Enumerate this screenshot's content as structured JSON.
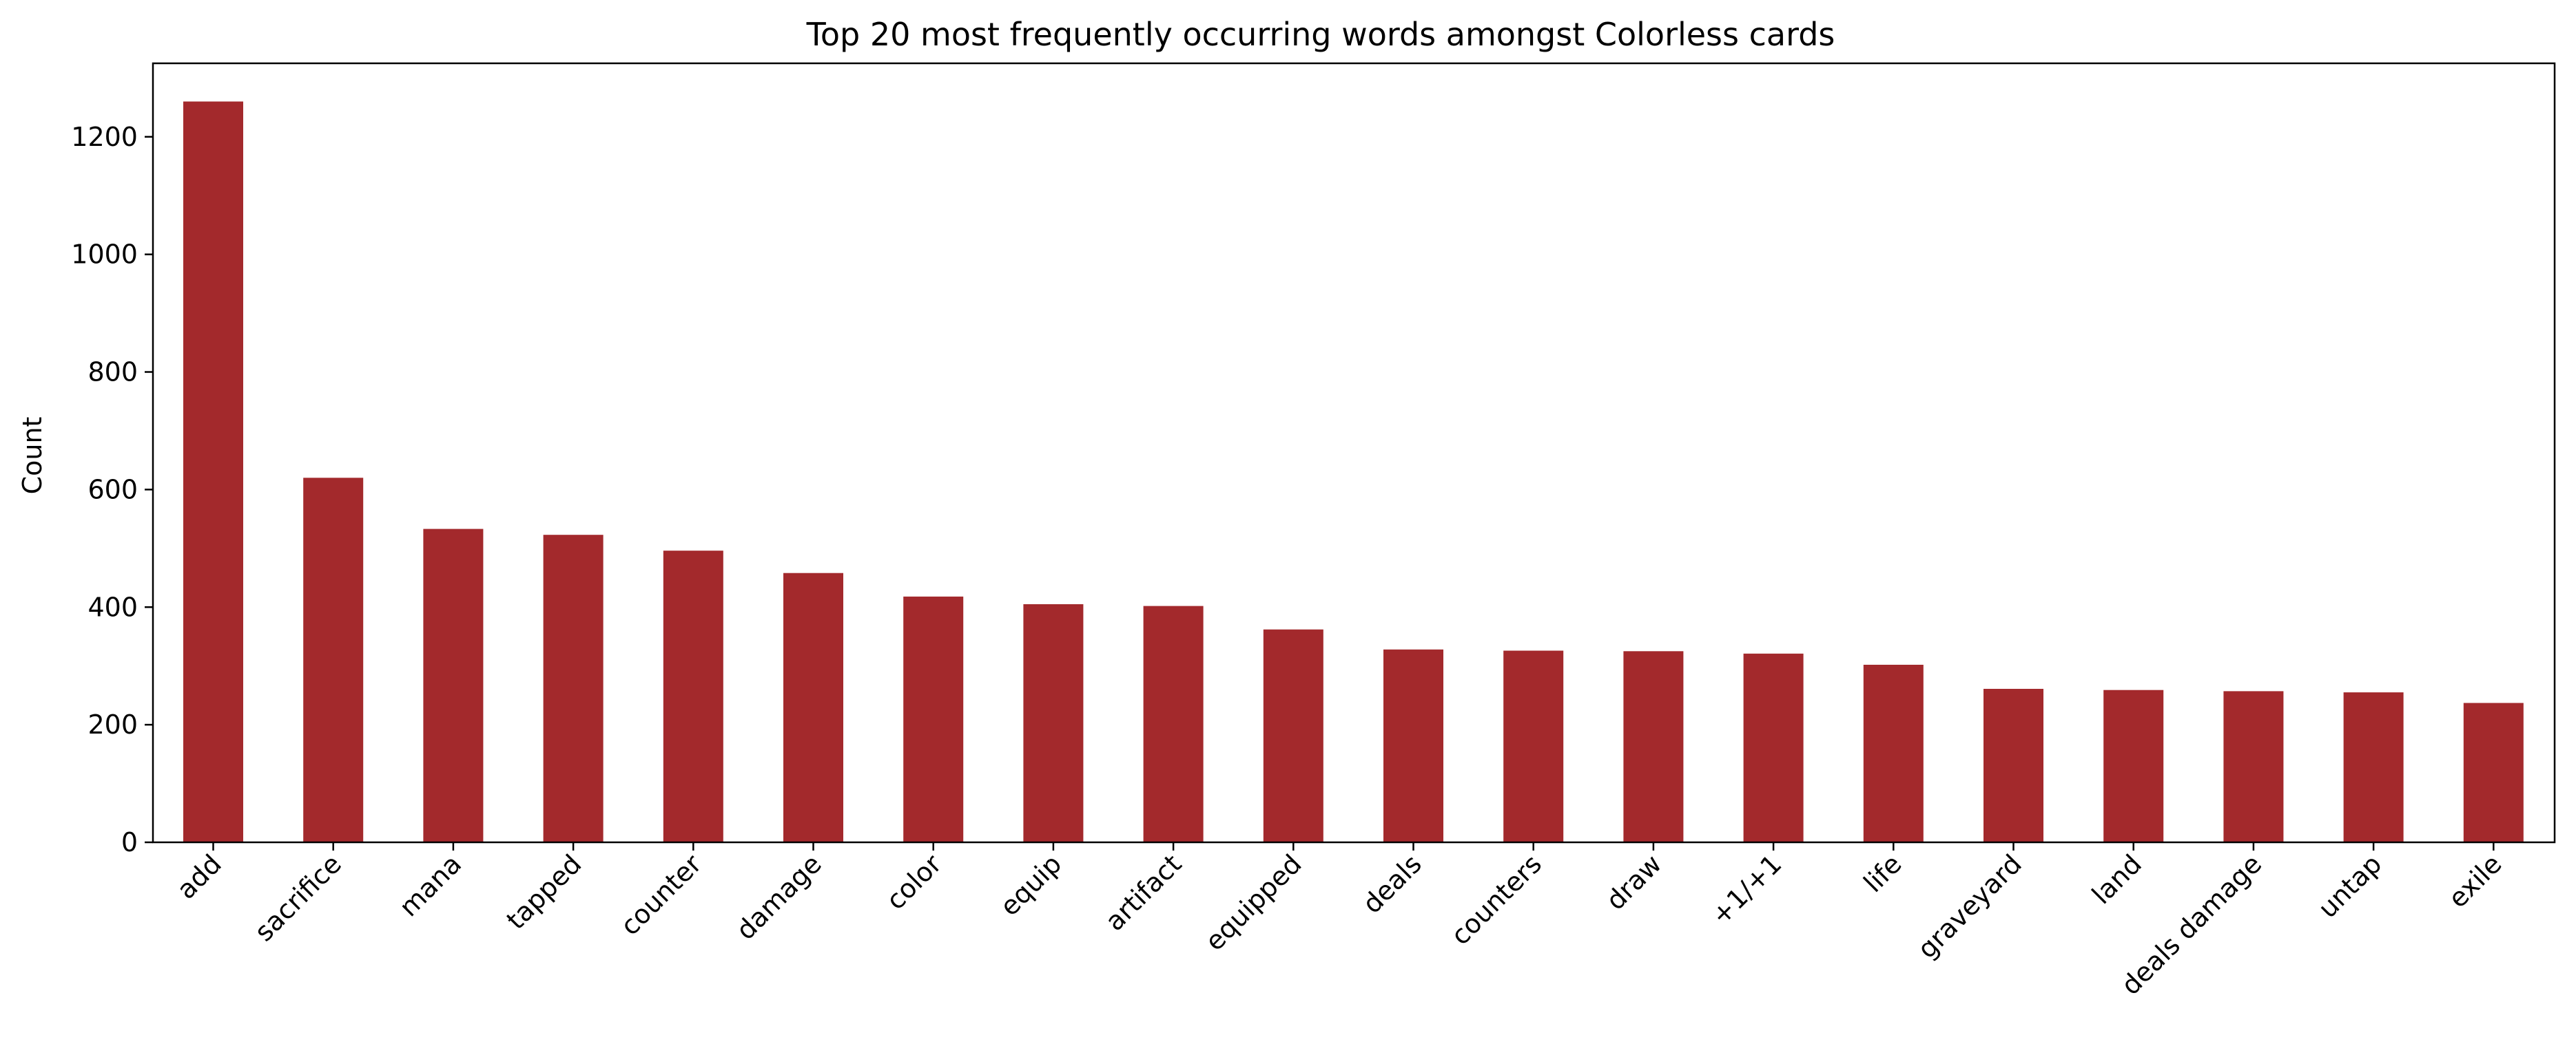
{
  "chart_data": {
    "type": "bar",
    "title": "Top 20 most frequently occurring words amongst Colorless cards",
    "xlabel": "",
    "ylabel": "Count",
    "categories": [
      "add",
      "sacrifice",
      "mana",
      "tapped",
      "counter",
      "damage",
      "color",
      "equip",
      "artifact",
      "equipped",
      "deals",
      "counters",
      "draw",
      "+1/+1",
      "life",
      "graveyard",
      "land",
      "deals damage",
      "untap",
      "exile"
    ],
    "values": [
      1260,
      620,
      533,
      523,
      496,
      458,
      418,
      405,
      402,
      362,
      328,
      326,
      325,
      321,
      302,
      261,
      259,
      257,
      255,
      237
    ],
    "ylim": [
      0,
      1325
    ],
    "yticks": [
      0,
      200,
      400,
      600,
      800,
      1000,
      1200
    ],
    "bar_color": "#a3292c",
    "grid": false,
    "legend": "none"
  }
}
